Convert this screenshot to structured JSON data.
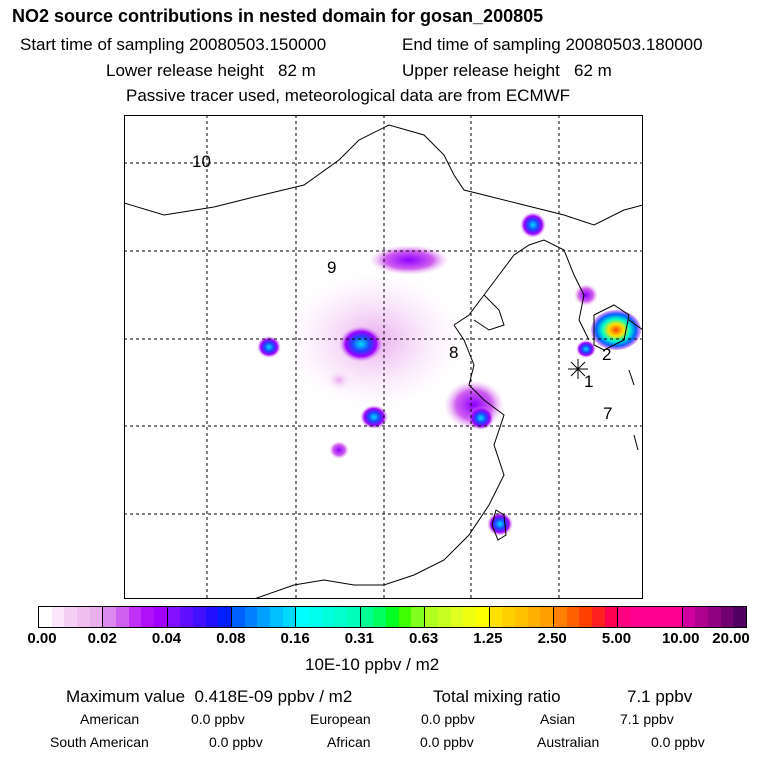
{
  "header": {
    "title": "NO2 source contributions in nested domain for gosan_200805",
    "start_label": "Start time of sampling 20080503.150000",
    "end_label": "End time of sampling 20080503.180000",
    "lower_label": "Lower release height   82 m",
    "upper_label": "Upper release height   62 m",
    "note": "Passive tracer used, meteorological data are from ECMWF"
  },
  "map": {
    "labels": [
      "10",
      "9",
      "8",
      "2",
      "1",
      "7"
    ]
  },
  "colorbar": {
    "ticks": [
      "0.00",
      "0.02",
      "0.04",
      "0.08",
      "0.16",
      "0.31",
      "0.63",
      "1.25",
      "2.50",
      "5.00",
      "10.00",
      "20.00"
    ],
    "unit": "10E-10 ppbv / m2",
    "colors": [
      [
        "#ffffff",
        "#fbe6fb",
        "#f5d0f5",
        "#f0bff0",
        "#eab0ee"
      ],
      [
        "#dd88ee",
        "#d060f0",
        "#c030f5",
        "#b010f8",
        "#a000ff"
      ],
      [
        "#8010ff",
        "#6010ff",
        "#4010ff",
        "#2010ff",
        "#0020ff"
      ],
      [
        "#0060ff",
        "#0080ff",
        "#00a0ff",
        "#00c0ff",
        "#00d8ff"
      ],
      [
        "#00ffff",
        "#00ffee",
        "#00ffdd",
        "#00ffcc",
        "#00ffb8"
      ],
      [
        "#00ff90",
        "#00ff60",
        "#00ff20",
        "#40ff00",
        "#80ff20"
      ],
      [
        "#b0ff20",
        "#c8ff20",
        "#e0ff20",
        "#f0ff10",
        "#ffff00"
      ],
      [
        "#ffe000",
        "#ffd000",
        "#ffc000",
        "#ffb000",
        "#ffa000"
      ],
      [
        "#ff8000",
        "#ff6000",
        "#ff4000",
        "#ff2020",
        "#ff0050"
      ],
      [
        "#ff0080",
        "#ff0090",
        "#ff0090",
        "#ff0090",
        "#ff0090"
      ],
      [
        "#d0009f",
        "#b00090",
        "#900080",
        "#700070",
        "#500060"
      ]
    ]
  },
  "stats": {
    "max_label": "Maximum value  0.418E-09 ppbv / m2",
    "total_label": "Total mixing ratio",
    "total_value": "7.1 ppbv",
    "regions": [
      {
        "name": "American",
        "value": "0.0 ppbv"
      },
      {
        "name": "European",
        "value": "0.0 ppbv"
      },
      {
        "name": "Asian",
        "value": "7.1 ppbv"
      },
      {
        "name": "South American",
        "value": "0.0 ppbv"
      },
      {
        "name": "African",
        "value": "0.0 ppbv"
      },
      {
        "name": "Australian",
        "value": "0.0 ppbv"
      }
    ]
  }
}
